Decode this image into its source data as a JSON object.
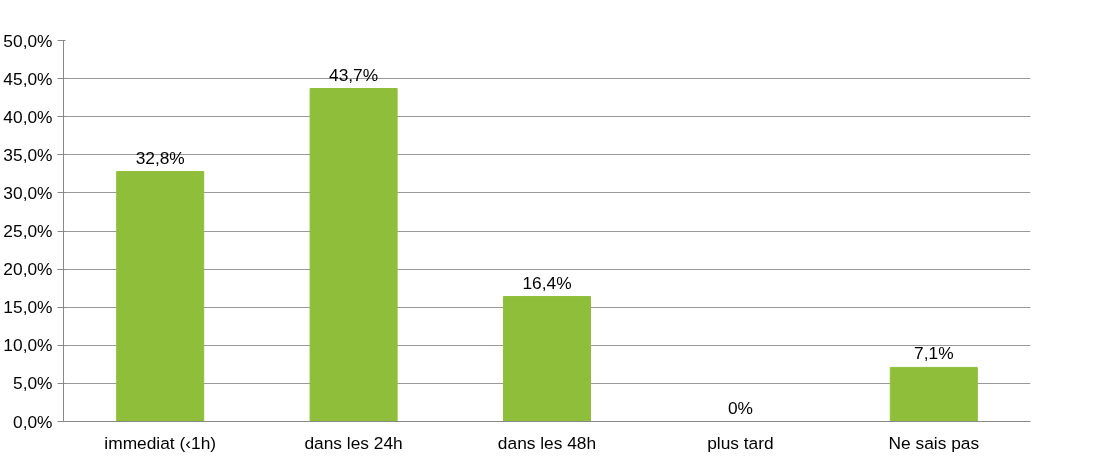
{
  "chart_data": {
    "type": "bar",
    "categories": [
      "immediat (‹1h)",
      "dans les 24h",
      "dans les 48h",
      "plus tard",
      "Ne sais pas"
    ],
    "values": [
      32.8,
      43.7,
      16.4,
      0,
      7.1
    ],
    "color": "#8fbf3a",
    "value_labels": [
      "32,8%",
      "43,7%",
      "16,4%",
      "0%",
      "7,1%"
    ],
    "ylim": [
      0,
      50
    ],
    "yticks": [
      {
        "value": 0,
        "label": "0,0%"
      },
      {
        "value": 5,
        "label": "5,0%"
      },
      {
        "value": 10,
        "label": "10,0%"
      },
      {
        "value": 15,
        "label": "15,0%"
      },
      {
        "value": 20,
        "label": "20,0%"
      },
      {
        "value": 25,
        "label": "25,0%"
      },
      {
        "value": 30,
        "label": "30,0%"
      },
      {
        "value": 35,
        "label": "35,0%"
      },
      {
        "value": 40,
        "label": "40,0%"
      },
      {
        "value": 45,
        "label": "45,0%"
      },
      {
        "value": 50,
        "label": "50,0%"
      }
    ],
    "grid": "y"
  }
}
